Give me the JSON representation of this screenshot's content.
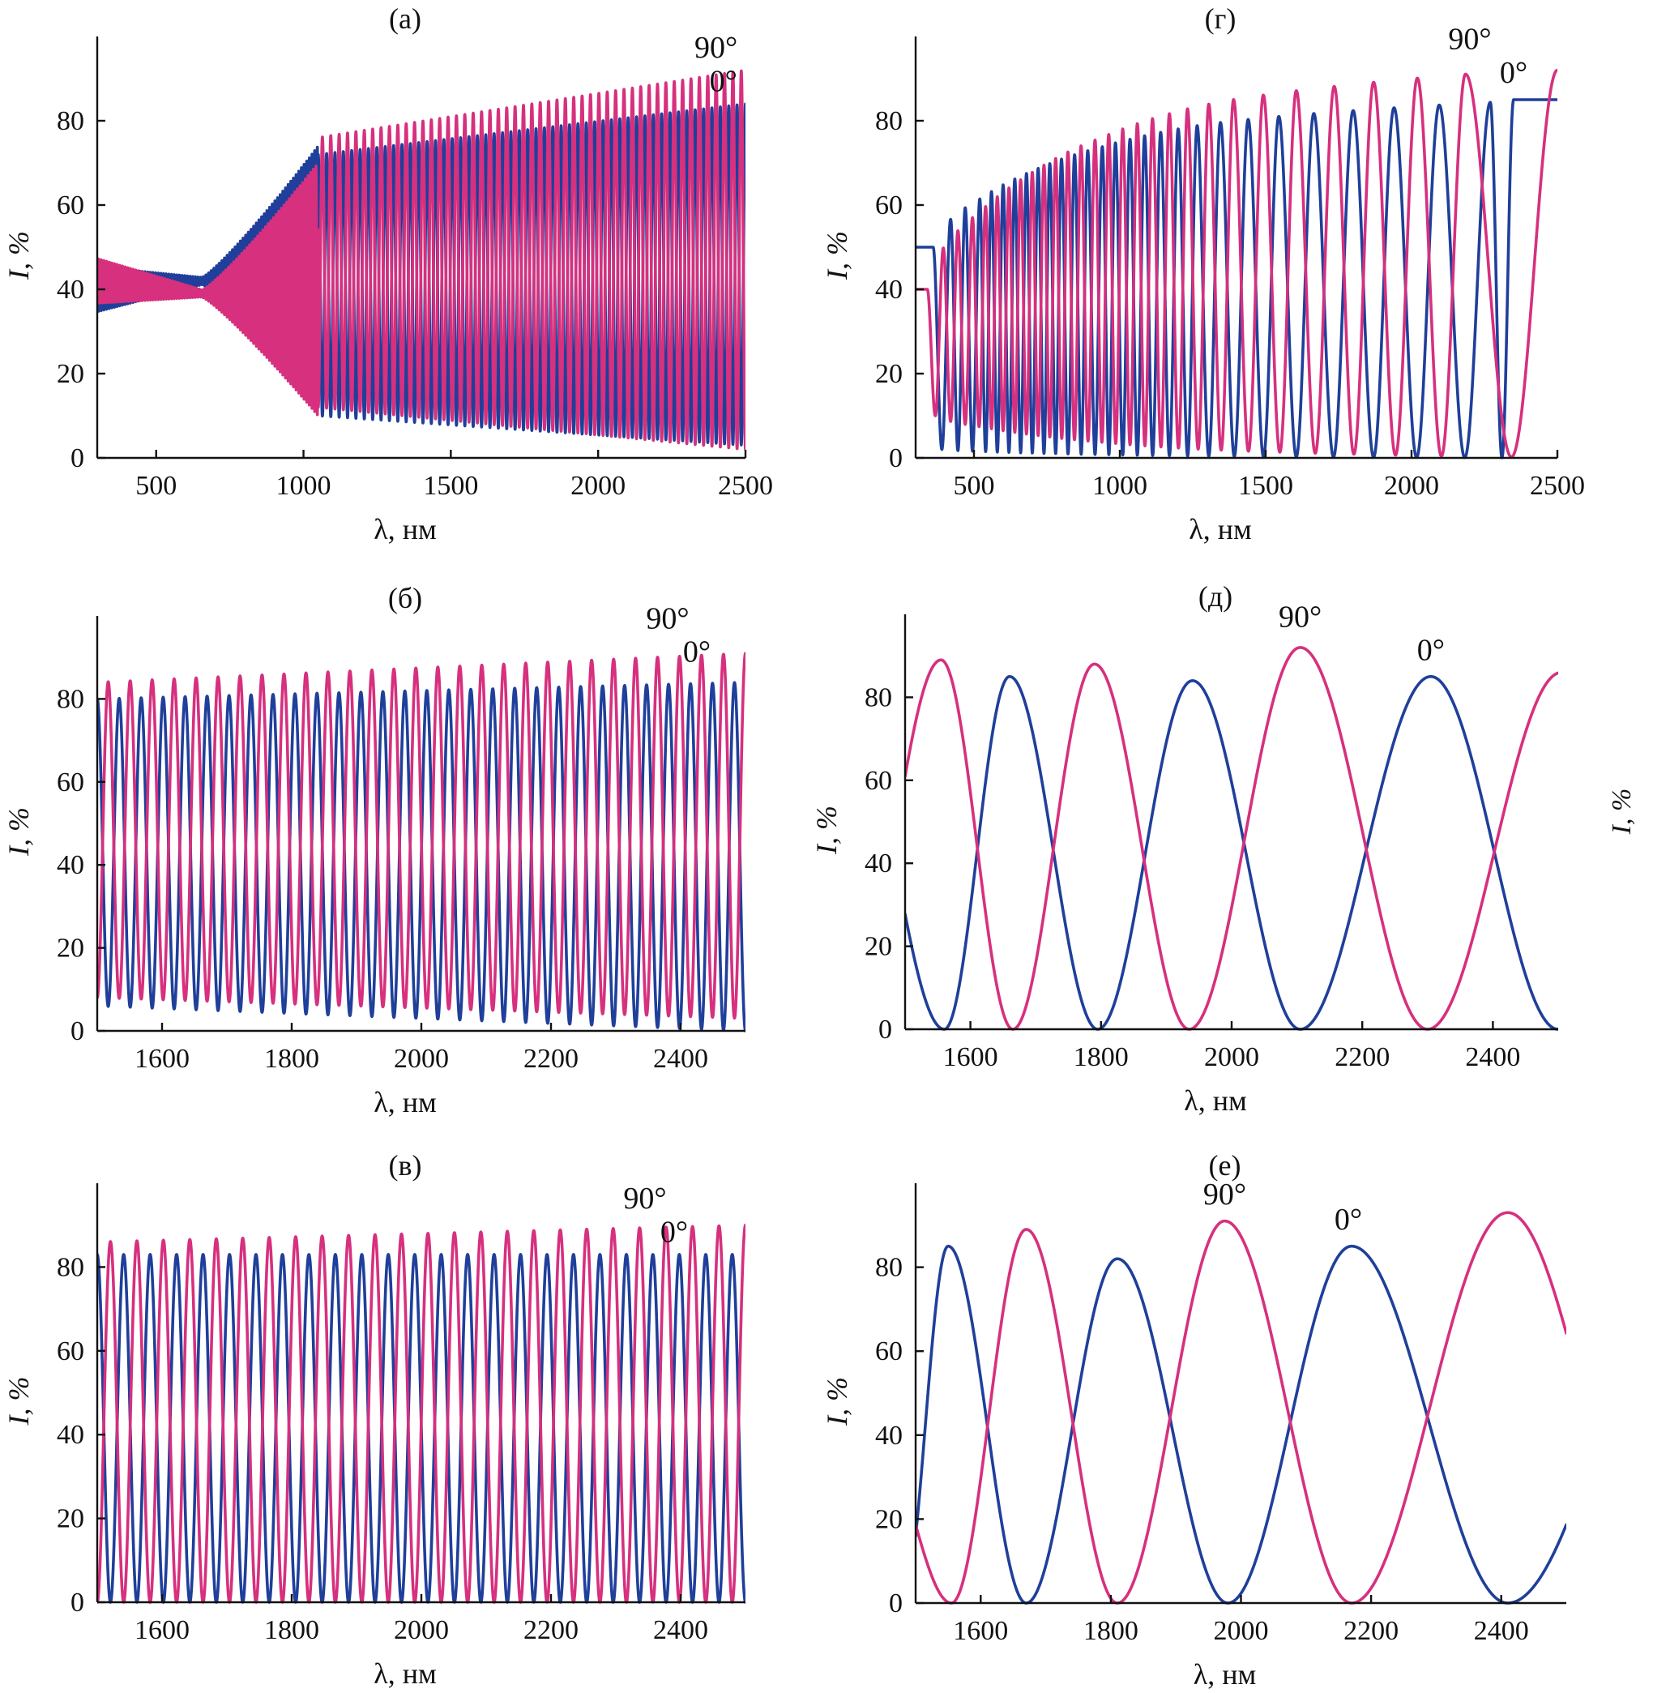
{
  "colors": {
    "deg0": "#1f3f9a",
    "deg90": "#d6307e",
    "axis": "#111111"
  },
  "edge_ylabel": "I, %",
  "chart_data": [
    {
      "type": "line",
      "title": "(а)",
      "xlabel": "λ, нм",
      "ylabel": "I, %",
      "xlim": [
        300,
        2500
      ],
      "ylim": [
        0,
        100
      ],
      "xticks": [
        500,
        1000,
        1500,
        2000,
        2500
      ],
      "yticks": [
        0,
        20,
        40,
        60,
        80
      ],
      "grid": false,
      "annotations": [
        {
          "text": "90°",
          "series": "90°",
          "x": 2400,
          "y": 95
        },
        {
          "text": "0°",
          "series": "0°",
          "x": 2425,
          "y": 87
        }
      ],
      "series": [
        {
          "name": "0°",
          "color_key": "deg0",
          "periods": 51,
          "max_start": 72,
          "max_end": 84,
          "min_start": 10,
          "min_end": 3,
          "phase": 0.0,
          "jump_x": 1050,
          "pre": {
            "base_start": 40,
            "base_end": 42,
            "bulge_end": 74,
            "bulge_min_end": 11
          }
        },
        {
          "name": "90°",
          "color_key": "deg90",
          "periods": 51,
          "max_start": 76,
          "max_end": 92,
          "min_start": 12,
          "min_end": 2,
          "phase": 0.5,
          "jump_x": 1050,
          "pre": {
            "base_start": 42,
            "base_end": 39,
            "bulge_end": 70,
            "bulge_min_end": 10
          }
        }
      ]
    },
    {
      "type": "line",
      "title": "(б)",
      "xlabel": "λ, нм",
      "ylabel": "I, %",
      "xlim": [
        1500,
        2500
      ],
      "ylim": [
        0,
        100
      ],
      "xticks": [
        1600,
        1800,
        2000,
        2200,
        2400
      ],
      "yticks": [
        0,
        20,
        40,
        60,
        80
      ],
      "grid": false,
      "annotations": [
        {
          "text": "90°",
          "series": "90°",
          "x": 2380,
          "y": 97
        },
        {
          "text": "0°",
          "series": "0°",
          "x": 2425,
          "y": 89
        }
      ],
      "series": [
        {
          "name": "0°",
          "color_key": "deg0",
          "periods": 29.5,
          "max_start": 80,
          "max_end": 84,
          "min_start": 6,
          "min_end": 0,
          "phase": 0.0
        },
        {
          "name": "90°",
          "color_key": "deg90",
          "periods": 29.5,
          "max_start": 84,
          "max_end": 91,
          "min_start": 8,
          "min_end": 3,
          "phase": 0.5
        }
      ]
    },
    {
      "type": "line",
      "title": "(в)",
      "xlabel": "λ, нм",
      "ylabel": "I, %",
      "xlim": [
        1500,
        2500
      ],
      "ylim": [
        0,
        100
      ],
      "xticks": [
        1600,
        1800,
        2000,
        2200,
        2400
      ],
      "yticks": [
        0,
        20,
        40,
        60,
        80
      ],
      "grid": false,
      "annotations": [
        {
          "text": "90°",
          "series": "90°",
          "x": 2345,
          "y": 94
        },
        {
          "text": "0°",
          "series": "0°",
          "x": 2390,
          "y": 86
        }
      ],
      "series": [
        {
          "name": "0°",
          "color_key": "deg0",
          "periods": 24.5,
          "max_start": 83,
          "max_end": 83,
          "min_start": 0,
          "min_end": 0,
          "phase": 0.0
        },
        {
          "name": "90°",
          "color_key": "deg90",
          "periods": 24.5,
          "max_start": 86,
          "max_end": 90,
          "min_start": 0,
          "min_end": 0,
          "phase": 0.5
        }
      ]
    },
    {
      "type": "line",
      "title": "(г)",
      "xlabel": "λ, нм",
      "ylabel": "I, %",
      "xlim": [
        300,
        2500
      ],
      "ylim": [
        0,
        100
      ],
      "xticks": [
        500,
        1000,
        1500,
        2000,
        2500
      ],
      "yticks": [
        0,
        20,
        40,
        60,
        80
      ],
      "grid": false,
      "annotations": [
        {
          "text": "90°",
          "series": "90°",
          "x": 2200,
          "y": 97
        },
        {
          "text": "0°",
          "series": "0°",
          "x": 2350,
          "y": 89
        }
      ],
      "series": [
        {
          "name": "0°",
          "color_key": "deg0",
          "peaks": [
            360,
            420,
            470,
            520,
            560,
            600,
            640,
            680,
            720,
            760,
            800,
            845,
            890,
            940,
            985,
            1035,
            1085,
            1140,
            1200,
            1265,
            1345,
            1440,
            1545,
            1665,
            1800,
            1940,
            2095,
            2270,
            2350
          ],
          "max_start": 50,
          "max_end": 85,
          "min_start": 2,
          "min_end": 0
        },
        {
          "name": "90°",
          "color_key": "deg90",
          "peaks": [
            340,
            395,
            445,
            495,
            540,
            580,
            620,
            660,
            700,
            740,
            780,
            822,
            867,
            915,
            962,
            1010,
            1060,
            1112,
            1170,
            1232,
            1305,
            1390,
            1492,
            1605,
            1735,
            1870,
            2020,
            2185,
            2500
          ],
          "max_start": 40,
          "max_end": 92,
          "min_start": 10,
          "min_end": 0
        }
      ]
    },
    {
      "type": "line",
      "title": "(д)",
      "xlabel": "λ, нм",
      "ylabel": "I, %",
      "xlim": [
        1500,
        2500
      ],
      "ylim": [
        0,
        100
      ],
      "xticks": [
        1600,
        1800,
        2000,
        2200,
        2400
      ],
      "yticks": [
        0,
        20,
        40,
        60,
        80
      ],
      "grid": false,
      "annotations": [
        {
          "text": "90°",
          "series": "90°",
          "x": 2105,
          "y": 97
        },
        {
          "text": "0°",
          "series": "0°",
          "x": 2305,
          "y": 89
        }
      ],
      "series": [
        {
          "name": "0°",
          "color_key": "deg0",
          "peaks": [
            1405,
            1660,
            1940,
            2305,
            2705
          ],
          "troughs": [
            1560,
            1795,
            2105,
            2500
          ],
          "max_values": [
            85,
            85,
            84,
            85,
            85
          ],
          "min_values": [
            0,
            0,
            0,
            0
          ]
        },
        {
          "name": "90°",
          "color_key": "deg90",
          "peaks": [
            1555,
            1790,
            2105,
            2505
          ],
          "troughs": [
            1410,
            1665,
            1935,
            2300,
            2700
          ],
          "max_values": [
            89,
            88,
            92,
            86
          ],
          "min_values": [
            0,
            0,
            0,
            0,
            0
          ]
        }
      ]
    },
    {
      "type": "line",
      "title": "(е)",
      "xlabel": "λ, нм",
      "ylabel": "I, %",
      "xlim": [
        1500,
        2500
      ],
      "ylim": [
        0,
        100
      ],
      "xticks": [
        1600,
        1800,
        2000,
        2200,
        2400
      ],
      "yticks": [
        0,
        20,
        40,
        60,
        80
      ],
      "grid": false,
      "annotations": [
        {
          "text": "90°",
          "series": "90°",
          "x": 1975,
          "y": 95
        },
        {
          "text": "0°",
          "series": "0°",
          "x": 2165,
          "y": 89
        }
      ],
      "series": [
        {
          "name": "0°",
          "color_key": "deg0",
          "peaks": [
            1440,
            1550,
            1810,
            2170,
            2700
          ],
          "troughs": [
            1480,
            1670,
            1980,
            2410
          ],
          "max_values": [
            85,
            85,
            82,
            85,
            85
          ],
          "min_values": [
            0,
            0,
            0,
            0
          ]
        },
        {
          "name": "90°",
          "color_key": "deg90",
          "peaks": [
            1440,
            1670,
            1975,
            2410
          ],
          "troughs": [
            1555,
            1810,
            2170,
            2650
          ],
          "max_values": [
            40,
            89,
            91,
            93
          ],
          "min_values": [
            0,
            0,
            0,
            0
          ]
        }
      ]
    }
  ]
}
